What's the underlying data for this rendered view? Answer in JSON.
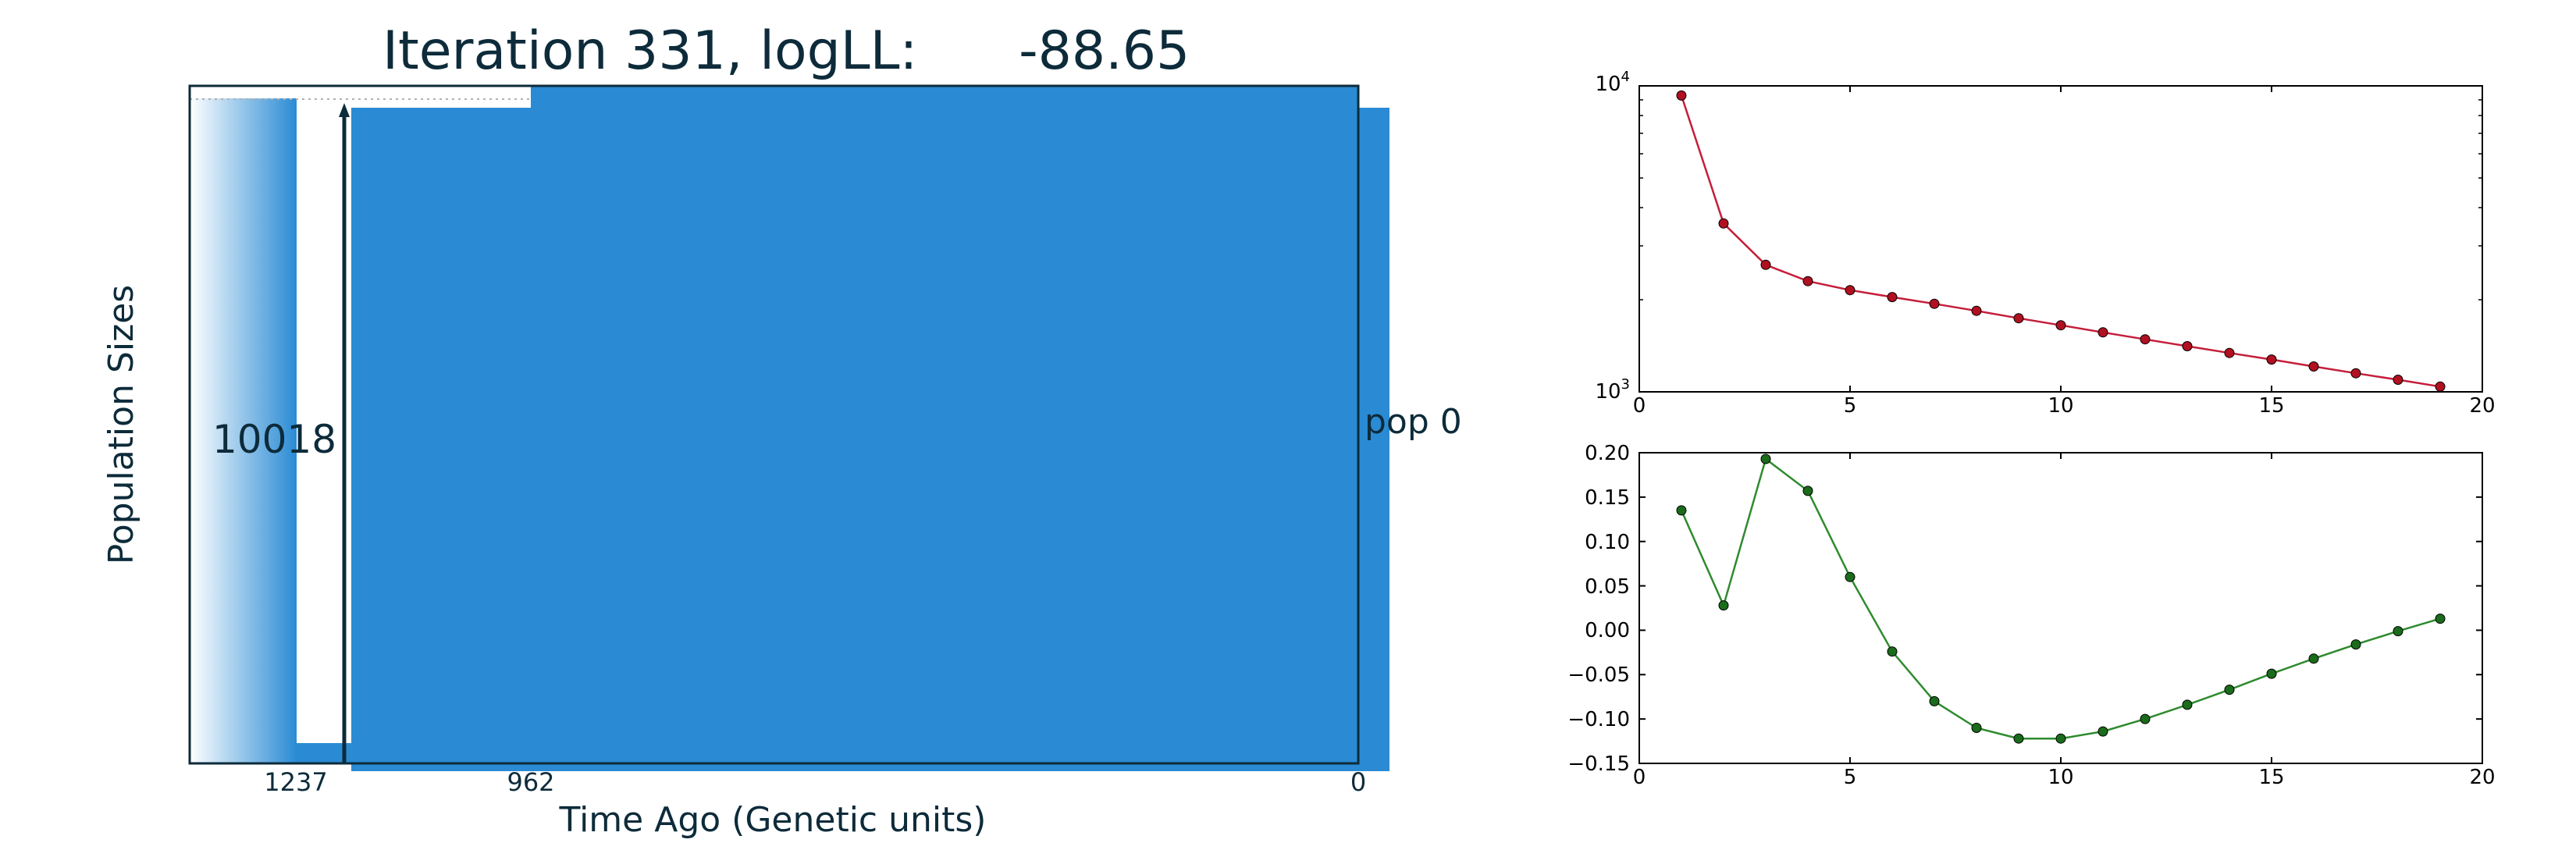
{
  "colors": {
    "text_dark": "#0d2b3a",
    "pop_fill": "#2a8bd4",
    "top_line": "#c41e3a",
    "bottom_line": "#2e8b2e",
    "bottom_marker": "#1a6b1a",
    "top_marker": "#b01020"
  },
  "chart_data": [
    {
      "type": "area",
      "title": "Iteration 331, logLL:      -88.65",
      "xlabel": "Time Ago (Genetic units)",
      "ylabel": "Population Sizes",
      "x_ticks": [
        "1237",
        "962",
        "0"
      ],
      "population_label": "pop 0",
      "size_label": "10018",
      "series": [
        {
          "name": "pop 0",
          "epochs": [
            {
              "time_start": 1237,
              "time_end": 962,
              "size": 10018
            },
            {
              "time_start": 962,
              "time_end": 0,
              "size": 10018
            }
          ]
        }
      ],
      "grid": false
    },
    {
      "type": "line",
      "x": [
        1,
        2,
        3,
        4,
        5,
        6,
        7,
        8,
        9,
        10,
        11,
        12,
        13,
        14,
        15,
        16,
        17,
        18,
        19
      ],
      "values": [
        9300,
        3550,
        2600,
        2300,
        2150,
        2040,
        1940,
        1840,
        1740,
        1650,
        1565,
        1485,
        1410,
        1340,
        1275,
        1210,
        1150,
        1095,
        1040
      ],
      "xlim": [
        0,
        20
      ],
      "ylim": [
        1000,
        10000
      ],
      "yscale": "log",
      "x_ticks": [
        "0",
        "5",
        "10",
        "15",
        "20"
      ],
      "y_ticks": [
        {
          "base": "10",
          "exp": "4"
        },
        {
          "base": "10",
          "exp": "3"
        }
      ],
      "grid": false
    },
    {
      "type": "line",
      "x": [
        1,
        2,
        3,
        4,
        5,
        6,
        7,
        8,
        9,
        10,
        11,
        12,
        13,
        14,
        15,
        16,
        17,
        18,
        19
      ],
      "values": [
        0.135,
        0.028,
        0.193,
        0.157,
        0.06,
        -0.024,
        -0.08,
        -0.11,
        -0.122,
        -0.122,
        -0.114,
        -0.1,
        -0.084,
        -0.067,
        -0.049,
        -0.032,
        -0.016,
        -0.001,
        0.013
      ],
      "xlim": [
        0,
        20
      ],
      "ylim": [
        -0.15,
        0.2
      ],
      "x_ticks": [
        "0",
        "5",
        "10",
        "15",
        "20"
      ],
      "y_ticks": [
        "0.20",
        "0.15",
        "0.10",
        "0.05",
        "0.00",
        "−0.05",
        "−0.10",
        "−0.15"
      ],
      "grid": false
    }
  ]
}
